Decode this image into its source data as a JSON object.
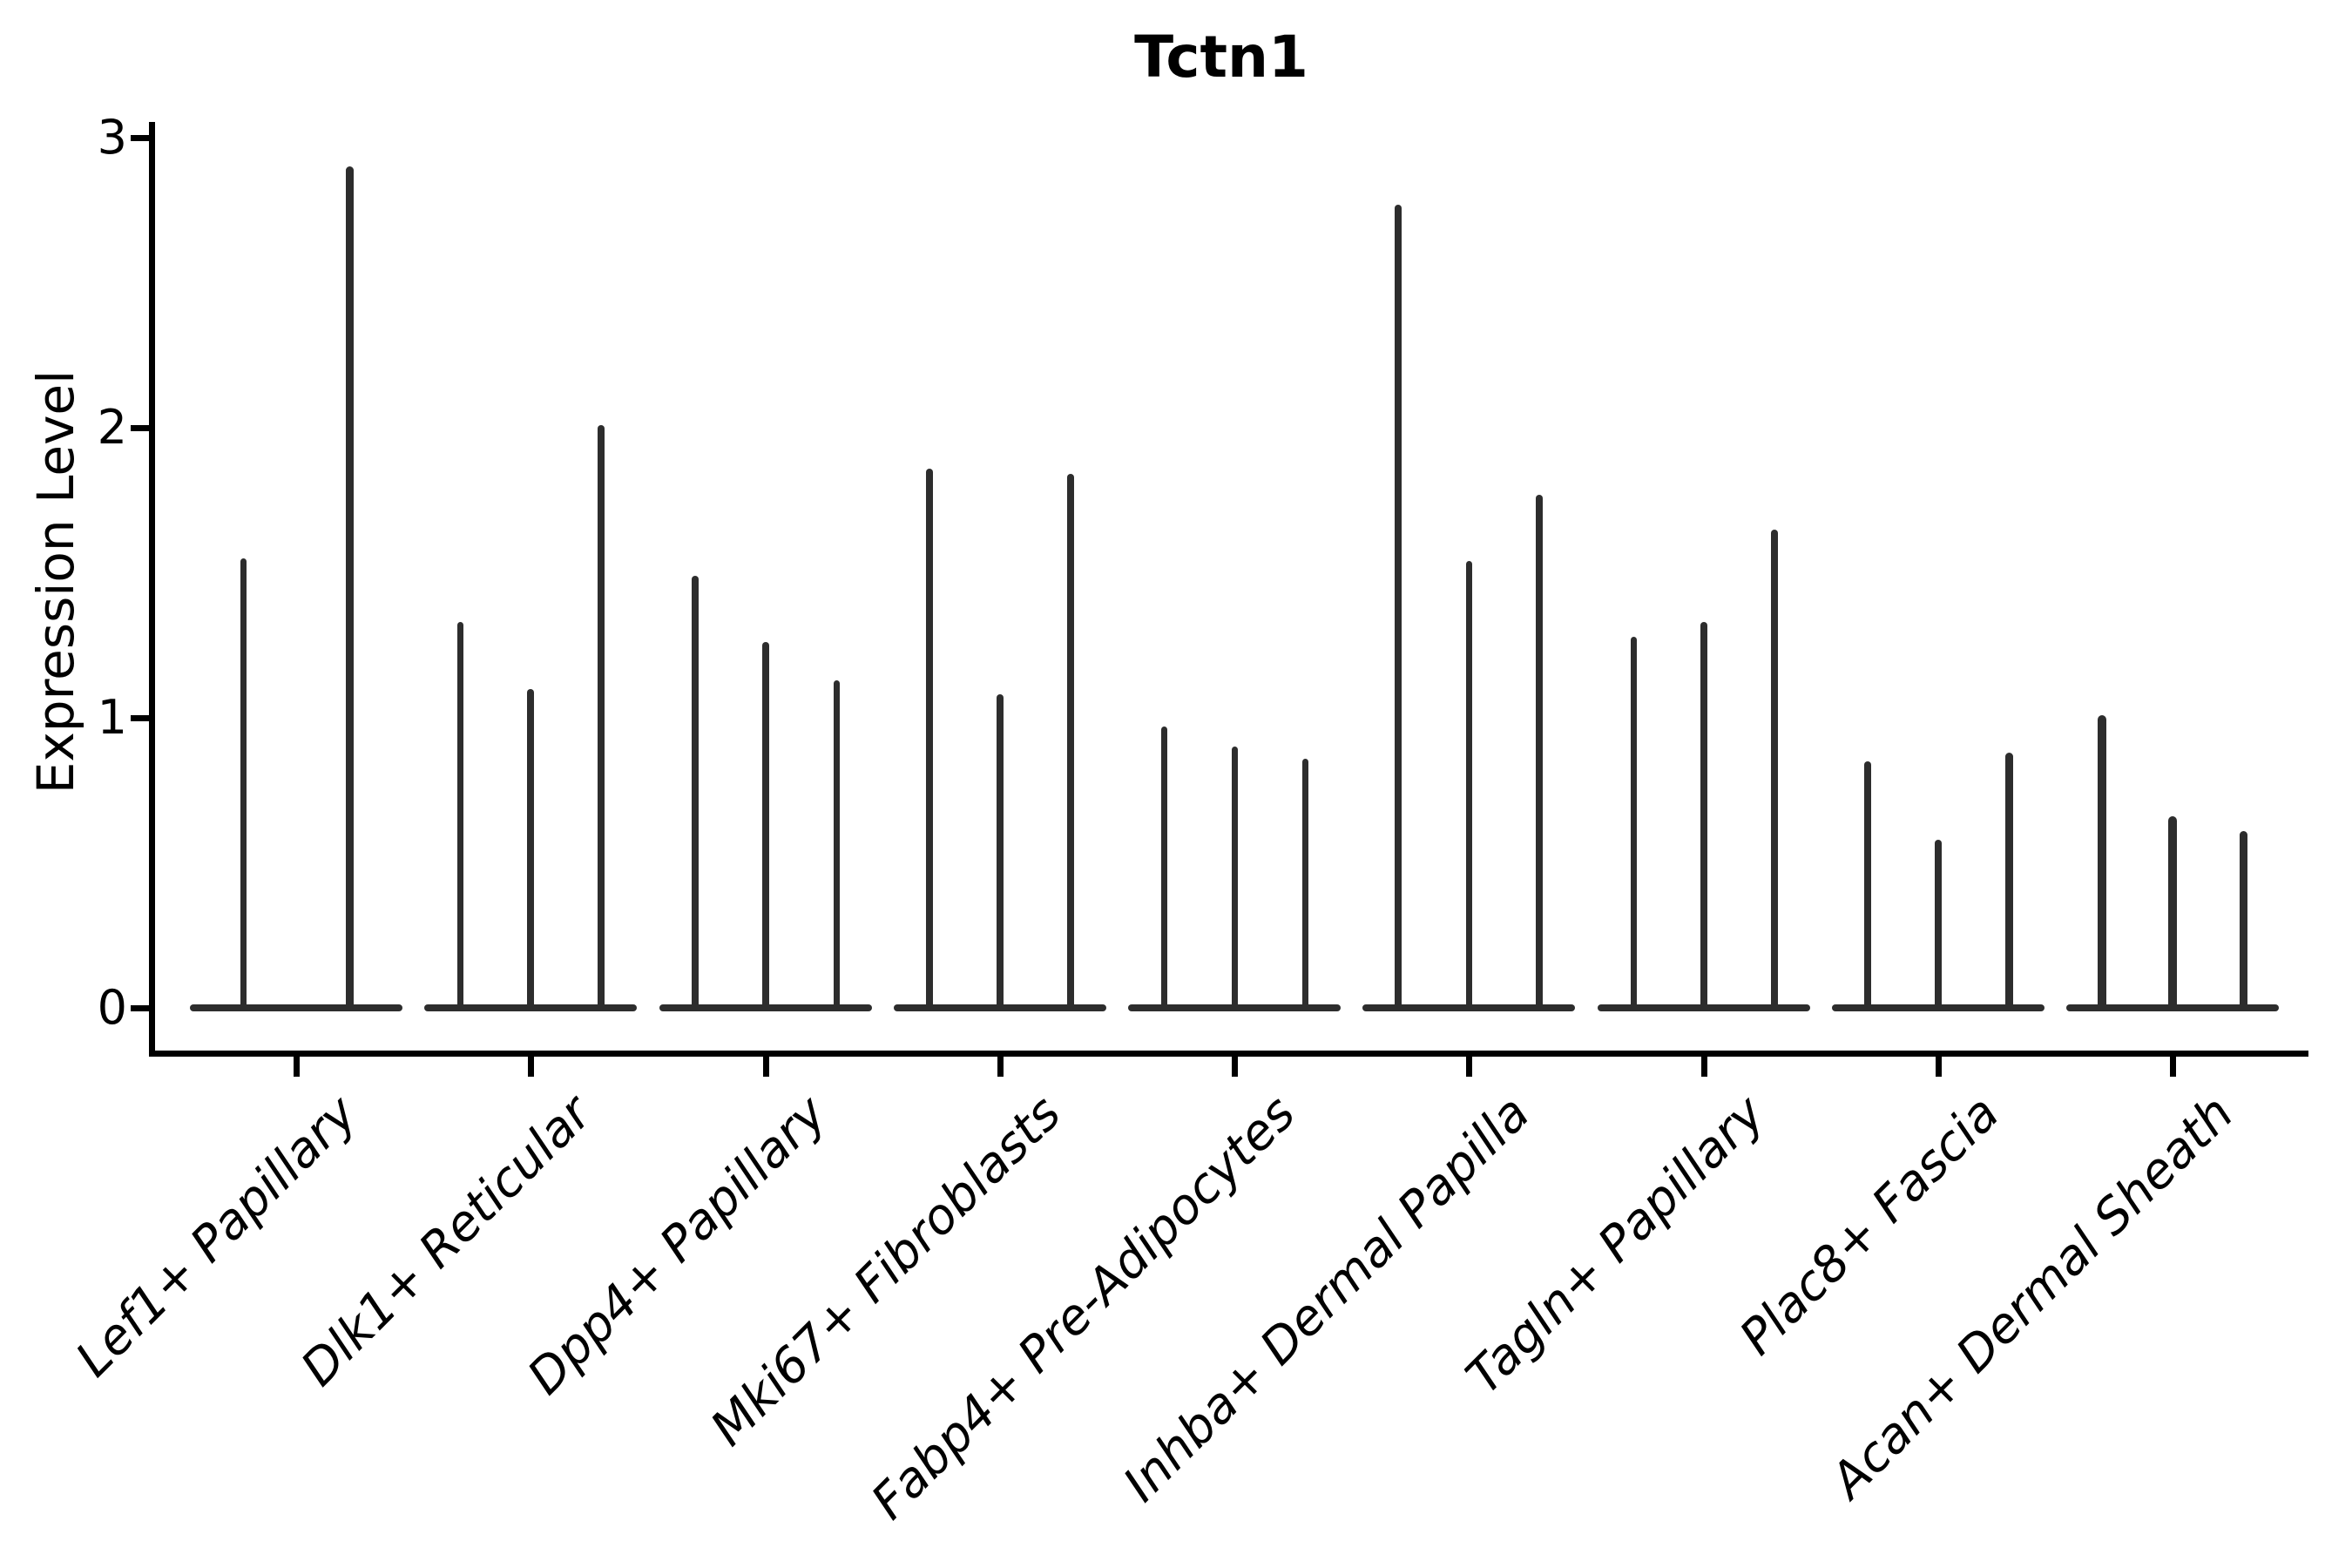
{
  "title": "Tctn1",
  "y_axis": {
    "label": "Expression Level",
    "tick_labels": [
      "0",
      "1",
      "2",
      "3"
    ]
  },
  "chart_data": {
    "type": "violin",
    "title": "Tctn1",
    "xlabel": "",
    "ylabel": "Expression Level",
    "ylim": [
      0,
      3.05
    ],
    "yticks": [
      0,
      1,
      2,
      3
    ],
    "grid": false,
    "legend": "none",
    "background": "#ffffff",
    "colors": {
      "violin": "#2d2d2d",
      "axis": "#000000",
      "text": "#000000"
    },
    "description": "Violin plot of Tctn1 expression per fibroblast cluster; each cluster shows 2-3 ultra-thin needle violins (bulk of cells at 0) whose spikes reach the listed maximum expression values.",
    "categories": [
      "Lef1+ Papillary",
      "Dlk1+ Reticular",
      "Dpp4+ Papillary",
      "Mki67+ Fibroblasts",
      "Fabp4+ Pre-Adipocytes",
      "Inhba+ Dermal Papilla",
      "Tagln+ Papillary",
      "Plac8+ Fascia",
      "Acan+ Dermal Sheath"
    ],
    "groups": [
      {
        "category": "Lef1+ Papillary",
        "violins": [
          {
            "max": 1.55,
            "width": 7
          },
          {
            "max": 2.9,
            "width": 9
          }
        ]
      },
      {
        "category": "Dlk1+ Reticular",
        "violins": [
          {
            "max": 1.33,
            "width": 7
          },
          {
            "max": 1.1,
            "width": 8
          },
          {
            "max": 2.01,
            "width": 8
          }
        ]
      },
      {
        "category": "Dpp4+ Papillary",
        "violins": [
          {
            "max": 1.49,
            "width": 8
          },
          {
            "max": 1.26,
            "width": 8
          },
          {
            "max": 1.13,
            "width": 7
          }
        ]
      },
      {
        "category": "Mki67+ Fibroblasts",
        "violins": [
          {
            "max": 1.86,
            "width": 8
          },
          {
            "max": 1.08,
            "width": 8
          },
          {
            "max": 1.84,
            "width": 8
          }
        ]
      },
      {
        "category": "Fabp4+ Pre-Adipocytes",
        "violins": [
          {
            "max": 0.97,
            "width": 7
          },
          {
            "max": 0.9,
            "width": 7
          },
          {
            "max": 0.86,
            "width": 7
          }
        ]
      },
      {
        "category": "Inhba+ Dermal Papilla",
        "violins": [
          {
            "max": 2.77,
            "width": 8
          },
          {
            "max": 1.54,
            "width": 7
          },
          {
            "max": 1.77,
            "width": 8
          }
        ]
      },
      {
        "category": "Tagln+ Papillary",
        "violins": [
          {
            "max": 1.28,
            "width": 7
          },
          {
            "max": 1.33,
            "width": 8
          },
          {
            "max": 1.65,
            "width": 8
          }
        ]
      },
      {
        "category": "Plac8+ Fascia",
        "violins": [
          {
            "max": 0.85,
            "width": 8
          },
          {
            "max": 0.58,
            "width": 8
          },
          {
            "max": 0.88,
            "width": 9
          }
        ]
      },
      {
        "category": "Acan+ Dermal Sheath",
        "violins": [
          {
            "max": 1.01,
            "width": 10
          },
          {
            "max": 0.66,
            "width": 10
          },
          {
            "max": 0.61,
            "width": 9
          }
        ]
      }
    ]
  }
}
